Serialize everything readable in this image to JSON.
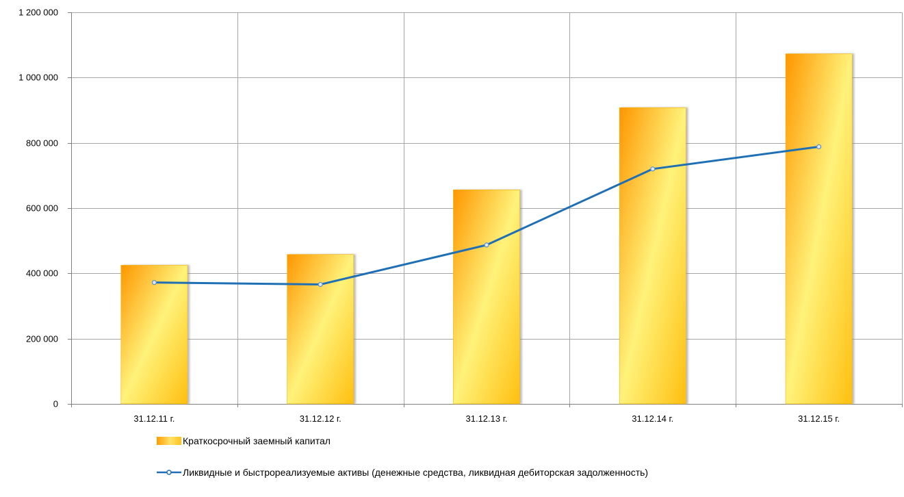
{
  "colors": {
    "bar_dark": "#ff9a00",
    "bar_light": "#fff37a",
    "bar_mid": "#ffc61f",
    "line": "#1f6fb4",
    "grid": "#a6a6a6",
    "axis": "#7f7f7f"
  },
  "chart_data": {
    "type": "bar",
    "categories": [
      "31.12.11 г.",
      "31.12.12 г.",
      "31.12.13 г.",
      "31.12.14 г.",
      "31.12.15 г."
    ],
    "ylim": [
      0,
      1200000
    ],
    "yticks": [
      0,
      200000,
      400000,
      600000,
      800000,
      1000000,
      1200000
    ],
    "ytick_labels": [
      "0",
      "200 000",
      "400 000",
      "600 000",
      "800 000",
      "1 000 000",
      "1 200 000"
    ],
    "grid": true,
    "legend_position": "bottom",
    "series": [
      {
        "name": "Краткосрочный заемный капитал",
        "kind": "bar",
        "values": [
          425000,
          458000,
          656000,
          908000,
          1073000
        ]
      },
      {
        "name": "Ликвидные и быстрореализуемые активы (денежные средства, ликвидная дебиторская задолженность)",
        "kind": "line",
        "values": [
          372000,
          366000,
          487000,
          720000,
          788000
        ]
      }
    ]
  }
}
